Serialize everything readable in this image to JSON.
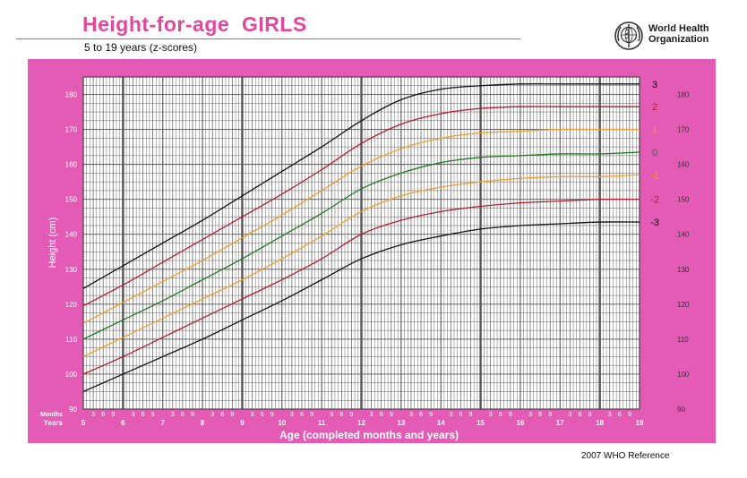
{
  "header": {
    "title": "Height-for-age  GIRLS",
    "subtitle": "5 to 19 years (z-scores)",
    "org_line1": "World Health",
    "org_line2": "Organization",
    "org_logo_icon": "who-emblem-icon"
  },
  "footer": {
    "reference": "2007 WHO Reference"
  },
  "colors": {
    "background_band": "#e35bb5",
    "plot_bg": "#ffffff",
    "grid": "#555555",
    "title": "#e0489e",
    "z3": "#111111",
    "z2": "#b81d2c",
    "z1": "#f59b2b",
    "z0": "#1f7a1f"
  },
  "chart_data": {
    "type": "line",
    "title": "Height-for-age  GIRLS",
    "subtitle": "5 to 19 years (z-scores)",
    "xlabel": "Age (completed months and years)",
    "ylabel": "Height (cm)",
    "xlim": [
      5,
      19
    ],
    "ylim": [
      90,
      185
    ],
    "x_tick_years": [
      "5",
      "6",
      "7",
      "8",
      "9",
      "10",
      "11",
      "12",
      "13",
      "14",
      "15",
      "16",
      "17",
      "18",
      "19"
    ],
    "x_tick_months": [
      "3",
      "6",
      "9"
    ],
    "months_row_label": "Months",
    "years_row_label": "Years",
    "y_ticks_left": [
      "90",
      "100",
      "110",
      "120",
      "130",
      "140",
      "150",
      "160",
      "170",
      "180"
    ],
    "y_ticks_right": [
      "90",
      "100",
      "110",
      "120",
      "130",
      "140",
      "150",
      "160",
      "170",
      "180"
    ],
    "grid": true,
    "x": [
      5,
      6,
      7,
      8,
      9,
      10,
      11,
      12,
      13,
      14,
      15,
      16,
      17,
      18,
      19
    ],
    "series": [
      {
        "name": "3",
        "color": "#111111",
        "values": [
          124.5,
          131,
          137.5,
          144,
          151,
          158,
          165,
          172.5,
          178.5,
          181.5,
          182.5,
          183,
          183,
          183,
          183
        ]
      },
      {
        "name": "2",
        "color": "#b81d2c",
        "values": [
          119.5,
          125.5,
          132,
          138.5,
          145,
          151.5,
          158.5,
          166,
          171.5,
          174.5,
          176,
          176.5,
          176.5,
          176.5,
          176.5
        ]
      },
      {
        "name": "1",
        "color": "#f59b2b",
        "values": [
          114.5,
          120.5,
          126.5,
          132.5,
          139,
          145.5,
          152.5,
          159.5,
          164.5,
          167.5,
          169,
          169.5,
          170,
          170,
          170
        ]
      },
      {
        "name": "0",
        "color": "#1f7a1f",
        "values": [
          110,
          115.5,
          121,
          127,
          133,
          139.5,
          146,
          153,
          157.5,
          160.5,
          162,
          162.5,
          163,
          163,
          163.5
        ]
      },
      {
        "name": "-1",
        "color": "#f59b2b",
        "values": [
          105,
          110.5,
          116,
          121.5,
          127,
          133,
          139.5,
          146.5,
          151,
          153.5,
          155,
          156,
          156.5,
          156.5,
          157
        ]
      },
      {
        "name": "-2",
        "color": "#b81d2c",
        "values": [
          100,
          105,
          110.5,
          116,
          121.5,
          127,
          133,
          140,
          144,
          146.5,
          148,
          149,
          149.5,
          150,
          150
        ]
      },
      {
        "name": "-3",
        "color": "#111111",
        "values": [
          95,
          100,
          105,
          110,
          115.5,
          121,
          127,
          133,
          137,
          139.5,
          141.5,
          142.5,
          143,
          143.5,
          143.5
        ]
      }
    ]
  }
}
